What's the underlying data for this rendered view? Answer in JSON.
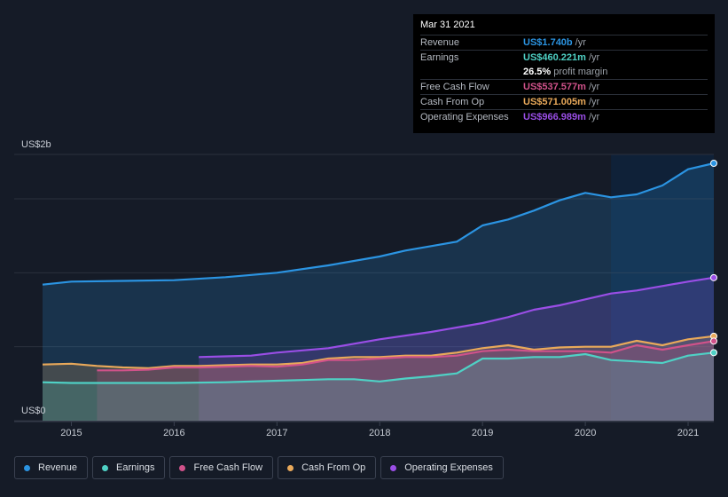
{
  "tooltip": {
    "date": "Mar 31 2021",
    "rows": [
      {
        "label": "Revenue",
        "value": "US$1.740b",
        "unit": "/yr",
        "color": "#2b94e2"
      },
      {
        "label": "Earnings",
        "value": "US$460.221m",
        "unit": "/yr",
        "color": "#4fd1c5"
      },
      {
        "label": "",
        "value": "26.5%",
        "unit": "profit margin",
        "color": "#ffffff"
      },
      {
        "label": "Free Cash Flow",
        "value": "US$537.577m",
        "unit": "/yr",
        "color": "#d0528a"
      },
      {
        "label": "Cash From Op",
        "value": "US$571.005m",
        "unit": "/yr",
        "color": "#e9a95a"
      },
      {
        "label": "Operating Expenses",
        "value": "US$966.989m",
        "unit": "/yr",
        "color": "#9a4ee6"
      }
    ]
  },
  "legend": [
    {
      "label": "Revenue",
      "color": "#2b94e2"
    },
    {
      "label": "Earnings",
      "color": "#4fd1c5"
    },
    {
      "label": "Free Cash Flow",
      "color": "#d0528a"
    },
    {
      "label": "Cash From Op",
      "color": "#e9a95a"
    },
    {
      "label": "Operating Expenses",
      "color": "#9a4ee6"
    }
  ],
  "chart_data": {
    "type": "area",
    "y_top_label": "US$2b",
    "y_bottom_label": "US$0",
    "ylim": [
      0,
      1.8
    ],
    "xlim": [
      2014.72,
      2021.25
    ],
    "x_ticks": [
      {
        "value": 2015,
        "label": "2015"
      },
      {
        "value": 2016,
        "label": "2016"
      },
      {
        "value": 2017,
        "label": "2017"
      },
      {
        "value": 2018,
        "label": "2018"
      },
      {
        "value": 2019,
        "label": "2019"
      },
      {
        "value": 2020,
        "label": "2020"
      },
      {
        "value": 2021,
        "label": "2021"
      }
    ],
    "highlight_start": 2020.25,
    "series": [
      {
        "name": "Revenue",
        "color": "#2b94e2",
        "points": [
          [
            2014.72,
            0.92
          ],
          [
            2015.0,
            0.94
          ],
          [
            2015.5,
            0.945
          ],
          [
            2016.0,
            0.95
          ],
          [
            2016.5,
            0.97
          ],
          [
            2017.0,
            1.0
          ],
          [
            2017.5,
            1.05
          ],
          [
            2018.0,
            1.11
          ],
          [
            2018.25,
            1.15
          ],
          [
            2018.5,
            1.18
          ],
          [
            2018.75,
            1.21
          ],
          [
            2019.0,
            1.32
          ],
          [
            2019.25,
            1.36
          ],
          [
            2019.5,
            1.42
          ],
          [
            2019.75,
            1.49
          ],
          [
            2020.0,
            1.54
          ],
          [
            2020.25,
            1.51
          ],
          [
            2020.5,
            1.53
          ],
          [
            2020.75,
            1.59
          ],
          [
            2021.0,
            1.7
          ],
          [
            2021.25,
            1.74
          ]
        ]
      },
      {
        "name": "Operating Expenses",
        "color": "#9a4ee6",
        "points": [
          [
            2016.24,
            0.43
          ],
          [
            2016.5,
            0.435
          ],
          [
            2016.75,
            0.44
          ],
          [
            2017.0,
            0.46
          ],
          [
            2017.5,
            0.49
          ],
          [
            2018.0,
            0.55
          ],
          [
            2018.5,
            0.6
          ],
          [
            2019.0,
            0.66
          ],
          [
            2019.25,
            0.7
          ],
          [
            2019.5,
            0.75
          ],
          [
            2019.75,
            0.78
          ],
          [
            2020.0,
            0.82
          ],
          [
            2020.25,
            0.86
          ],
          [
            2020.5,
            0.88
          ],
          [
            2020.75,
            0.91
          ],
          [
            2021.0,
            0.94
          ],
          [
            2021.25,
            0.967
          ]
        ]
      },
      {
        "name": "Cash From Op",
        "color": "#e9a95a",
        "points": [
          [
            2014.72,
            0.38
          ],
          [
            2015.0,
            0.385
          ],
          [
            2015.25,
            0.37
          ],
          [
            2015.5,
            0.36
          ],
          [
            2015.75,
            0.355
          ],
          [
            2016.0,
            0.37
          ],
          [
            2016.25,
            0.37
          ],
          [
            2016.5,
            0.375
          ],
          [
            2016.75,
            0.38
          ],
          [
            2017.0,
            0.38
          ],
          [
            2017.25,
            0.39
          ],
          [
            2017.5,
            0.42
          ],
          [
            2017.75,
            0.43
          ],
          [
            2018.0,
            0.43
          ],
          [
            2018.25,
            0.44
          ],
          [
            2018.5,
            0.44
          ],
          [
            2018.75,
            0.46
          ],
          [
            2019.0,
            0.49
          ],
          [
            2019.25,
            0.51
          ],
          [
            2019.5,
            0.48
          ],
          [
            2019.75,
            0.495
          ],
          [
            2020.0,
            0.5
          ],
          [
            2020.25,
            0.5
          ],
          [
            2020.5,
            0.54
          ],
          [
            2020.75,
            0.51
          ],
          [
            2021.0,
            0.55
          ],
          [
            2021.25,
            0.571
          ]
        ]
      },
      {
        "name": "Free Cash Flow",
        "color": "#d0528a",
        "points": [
          [
            2015.25,
            0.34
          ],
          [
            2015.5,
            0.34
          ],
          [
            2015.75,
            0.345
          ],
          [
            2016.0,
            0.36
          ],
          [
            2016.25,
            0.36
          ],
          [
            2016.5,
            0.365
          ],
          [
            2016.75,
            0.37
          ],
          [
            2017.0,
            0.365
          ],
          [
            2017.25,
            0.38
          ],
          [
            2017.5,
            0.41
          ],
          [
            2017.75,
            0.41
          ],
          [
            2018.0,
            0.42
          ],
          [
            2018.25,
            0.43
          ],
          [
            2018.5,
            0.43
          ],
          [
            2018.75,
            0.44
          ],
          [
            2019.0,
            0.47
          ],
          [
            2019.25,
            0.48
          ],
          [
            2019.5,
            0.47
          ],
          [
            2019.75,
            0.47
          ],
          [
            2020.0,
            0.47
          ],
          [
            2020.25,
            0.46
          ],
          [
            2020.5,
            0.51
          ],
          [
            2020.75,
            0.48
          ],
          [
            2021.0,
            0.51
          ],
          [
            2021.25,
            0.538
          ]
        ]
      },
      {
        "name": "Earnings",
        "color": "#4fd1c5",
        "points": [
          [
            2014.72,
            0.26
          ],
          [
            2015.0,
            0.255
          ],
          [
            2015.5,
            0.255
          ],
          [
            2016.0,
            0.255
          ],
          [
            2016.5,
            0.26
          ],
          [
            2017.0,
            0.27
          ],
          [
            2017.25,
            0.275
          ],
          [
            2017.5,
            0.28
          ],
          [
            2017.75,
            0.28
          ],
          [
            2018.0,
            0.265
          ],
          [
            2018.25,
            0.285
          ],
          [
            2018.5,
            0.3
          ],
          [
            2018.75,
            0.32
          ],
          [
            2019.0,
            0.42
          ],
          [
            2019.25,
            0.42
          ],
          [
            2019.5,
            0.43
          ],
          [
            2019.75,
            0.43
          ],
          [
            2020.0,
            0.45
          ],
          [
            2020.25,
            0.41
          ],
          [
            2020.5,
            0.4
          ],
          [
            2020.75,
            0.39
          ],
          [
            2021.0,
            0.44
          ],
          [
            2021.25,
            0.46
          ]
        ]
      }
    ]
  }
}
